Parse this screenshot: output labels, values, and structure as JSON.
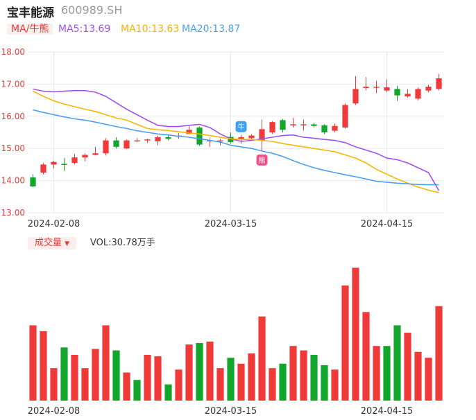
{
  "header": {
    "name": "宝丰能源",
    "code": "600989.SH"
  },
  "legend": {
    "ma_mode": "MA/牛熊",
    "ma5": "MA5:13.69",
    "ma10": "MA10:13.63",
    "ma20": "MA20:13.87"
  },
  "volume_panel": {
    "label": "成交量",
    "label_arrow": "▼",
    "value": "VOL:30.78万手"
  },
  "colors": {
    "up": "#f03a3a",
    "down": "#12a62d",
    "ma5": "#a050ef",
    "ma10": "#f5b800",
    "ma20": "#4aa0ee",
    "axis_text": "#e0403a",
    "grid": "#e8e8e8"
  },
  "markers": [
    {
      "name": "bull-marker",
      "glyph": "牛",
      "index": 20
    },
    {
      "name": "bear-marker",
      "glyph": "熊",
      "index": 22
    }
  ],
  "chart_data": [
    {
      "type": "candlestick",
      "ylim": [
        13.0,
        18.0
      ],
      "y_ticks": [
        "18.00",
        "17.00",
        "16.00",
        "15.00",
        "14.00",
        "13.00"
      ],
      "x_ticks": [
        {
          "label": "2024-02-08",
          "index": 2
        },
        {
          "label": "2024-03-15",
          "index": 19
        },
        {
          "label": "2024-04-15",
          "index": 34
        }
      ],
      "candles": [
        {
          "o": 14.1,
          "c": 13.82,
          "h": 14.2,
          "l": 13.8
        },
        {
          "o": 14.25,
          "c": 14.5,
          "h": 14.55,
          "l": 14.2
        },
        {
          "o": 14.5,
          "c": 14.58,
          "h": 14.62,
          "l": 14.38
        },
        {
          "o": 14.52,
          "c": 14.5,
          "h": 14.7,
          "l": 14.3
        },
        {
          "o": 14.55,
          "c": 14.72,
          "h": 14.82,
          "l": 14.5
        },
        {
          "o": 14.72,
          "c": 14.8,
          "h": 14.85,
          "l": 14.6
        },
        {
          "o": 14.8,
          "c": 14.85,
          "h": 15.05,
          "l": 14.78
        },
        {
          "o": 14.85,
          "c": 15.25,
          "h": 15.32,
          "l": 14.78
        },
        {
          "o": 15.25,
          "c": 15.05,
          "h": 15.35,
          "l": 15.0
        },
        {
          "o": 15.0,
          "c": 15.25,
          "h": 15.28,
          "l": 14.98
        },
        {
          "o": 15.25,
          "c": 15.25,
          "h": 15.32,
          "l": 15.2
        },
        {
          "o": 15.25,
          "c": 15.28,
          "h": 15.3,
          "l": 15.18
        },
        {
          "o": 15.22,
          "c": 15.35,
          "h": 15.4,
          "l": 15.1
        },
        {
          "o": 15.35,
          "c": 15.3,
          "h": 15.42,
          "l": 15.25
        },
        {
          "o": 15.4,
          "c": 15.4,
          "h": 15.48,
          "l": 15.3
        },
        {
          "o": 15.45,
          "c": 15.58,
          "h": 15.7,
          "l": 15.45
        },
        {
          "o": 15.65,
          "c": 15.12,
          "h": 15.68,
          "l": 15.08
        },
        {
          "o": 15.25,
          "c": 15.25,
          "h": 15.32,
          "l": 15.05
        },
        {
          "o": 15.25,
          "c": 15.25,
          "h": 15.3,
          "l": 15.1
        },
        {
          "o": 15.36,
          "c": 15.2,
          "h": 15.5,
          "l": 15.15
        },
        {
          "o": 15.3,
          "c": 15.35,
          "h": 15.42,
          "l": 15.15
        },
        {
          "o": 15.32,
          "c": 15.4,
          "h": 15.45,
          "l": 15.28
        },
        {
          "o": 15.25,
          "c": 15.6,
          "h": 15.9,
          "l": 14.9
        },
        {
          "o": 15.5,
          "c": 15.82,
          "h": 15.85,
          "l": 15.45
        },
        {
          "o": 15.88,
          "c": 15.58,
          "h": 15.92,
          "l": 15.5
        },
        {
          "o": 15.72,
          "c": 15.75,
          "h": 15.95,
          "l": 15.65
        },
        {
          "o": 15.72,
          "c": 15.75,
          "h": 15.9,
          "l": 15.55
        },
        {
          "o": 15.75,
          "c": 15.7,
          "h": 15.8,
          "l": 15.65
        },
        {
          "o": 15.72,
          "c": 15.5,
          "h": 15.75,
          "l": 15.45
        },
        {
          "o": 15.55,
          "c": 15.7,
          "h": 15.78,
          "l": 15.5
        },
        {
          "o": 15.65,
          "c": 16.35,
          "h": 16.4,
          "l": 15.62
        },
        {
          "o": 16.4,
          "c": 16.85,
          "h": 17.25,
          "l": 16.35
        },
        {
          "o": 16.88,
          "c": 16.92,
          "h": 17.22,
          "l": 16.8
        },
        {
          "o": 16.9,
          "c": 16.92,
          "h": 17.1,
          "l": 16.72
        },
        {
          "o": 16.8,
          "c": 16.9,
          "h": 17.15,
          "l": 16.75
        },
        {
          "o": 16.85,
          "c": 16.65,
          "h": 16.95,
          "l": 16.48
        },
        {
          "o": 16.62,
          "c": 16.7,
          "h": 16.85,
          "l": 16.58
        },
        {
          "o": 16.55,
          "c": 16.85,
          "h": 16.9,
          "l": 16.5
        },
        {
          "o": 16.8,
          "c": 16.92,
          "h": 16.98,
          "l": 16.75
        },
        {
          "o": 16.85,
          "c": 17.18,
          "h": 17.32,
          "l": 16.8
        }
      ],
      "series": [
        {
          "name": "MA5",
          "values": [
            16.85,
            16.78,
            16.76,
            16.78,
            16.8,
            16.8,
            16.75,
            16.62,
            16.42,
            16.22,
            16.05,
            15.88,
            15.72,
            15.68,
            15.68,
            15.72,
            15.75,
            15.65,
            15.45,
            15.3,
            15.22,
            15.25,
            15.3,
            15.35,
            15.4,
            15.42,
            15.35,
            15.32,
            15.28,
            15.25,
            15.18,
            15.05,
            14.95,
            14.85,
            14.7,
            14.65,
            14.55,
            14.4,
            14.25,
            13.69
          ]
        },
        {
          "name": "MA10",
          "values": [
            16.78,
            16.62,
            16.48,
            16.38,
            16.3,
            16.22,
            16.15,
            16.05,
            15.95,
            15.88,
            15.75,
            15.62,
            15.58,
            15.56,
            15.52,
            15.48,
            15.45,
            15.4,
            15.35,
            15.3,
            15.28,
            15.28,
            15.25,
            15.22,
            15.15,
            15.1,
            15.05,
            15.0,
            14.95,
            14.9,
            14.8,
            14.7,
            14.55,
            14.35,
            14.2,
            14.05,
            13.92,
            13.8,
            13.7,
            13.63
          ]
        },
        {
          "name": "MA20",
          "values": [
            16.2,
            16.12,
            16.05,
            15.98,
            15.92,
            15.88,
            15.82,
            15.75,
            15.68,
            15.62,
            15.55,
            15.5,
            15.45,
            15.42,
            15.38,
            15.35,
            15.3,
            15.25,
            15.2,
            15.1,
            15.05,
            15.0,
            14.92,
            14.85,
            14.75,
            14.62,
            14.5,
            14.4,
            14.32,
            14.25,
            14.18,
            14.12,
            14.05,
            13.98,
            13.95,
            13.92,
            13.9,
            13.88,
            13.87,
            13.87
          ]
        }
      ]
    },
    {
      "type": "bar",
      "title": "成交量",
      "x_ticks": [
        {
          "label": "2024-02-08",
          "index": 2
        },
        {
          "label": "2024-03-15",
          "index": 19
        },
        {
          "label": "2024-04-15",
          "index": 34
        }
      ],
      "ylim": [
        0,
        100
      ],
      "values": [
        51,
        47,
        22,
        36,
        31,
        22,
        35,
        51,
        34,
        19,
        14,
        31,
        30,
        11,
        21,
        38,
        39,
        40,
        22,
        29,
        25,
        32,
        57,
        22,
        25,
        37,
        34,
        31,
        24,
        21,
        78,
        90,
        60,
        37,
        37,
        51,
        46,
        33,
        29,
        64
      ],
      "up": [
        true,
        true,
        true,
        false,
        true,
        true,
        true,
        true,
        false,
        true,
        false,
        true,
        true,
        false,
        true,
        true,
        false,
        true,
        true,
        false,
        true,
        true,
        true,
        true,
        false,
        true,
        true,
        false,
        false,
        true,
        true,
        true,
        true,
        true,
        false,
        false,
        true,
        true,
        true,
        true
      ]
    }
  ]
}
